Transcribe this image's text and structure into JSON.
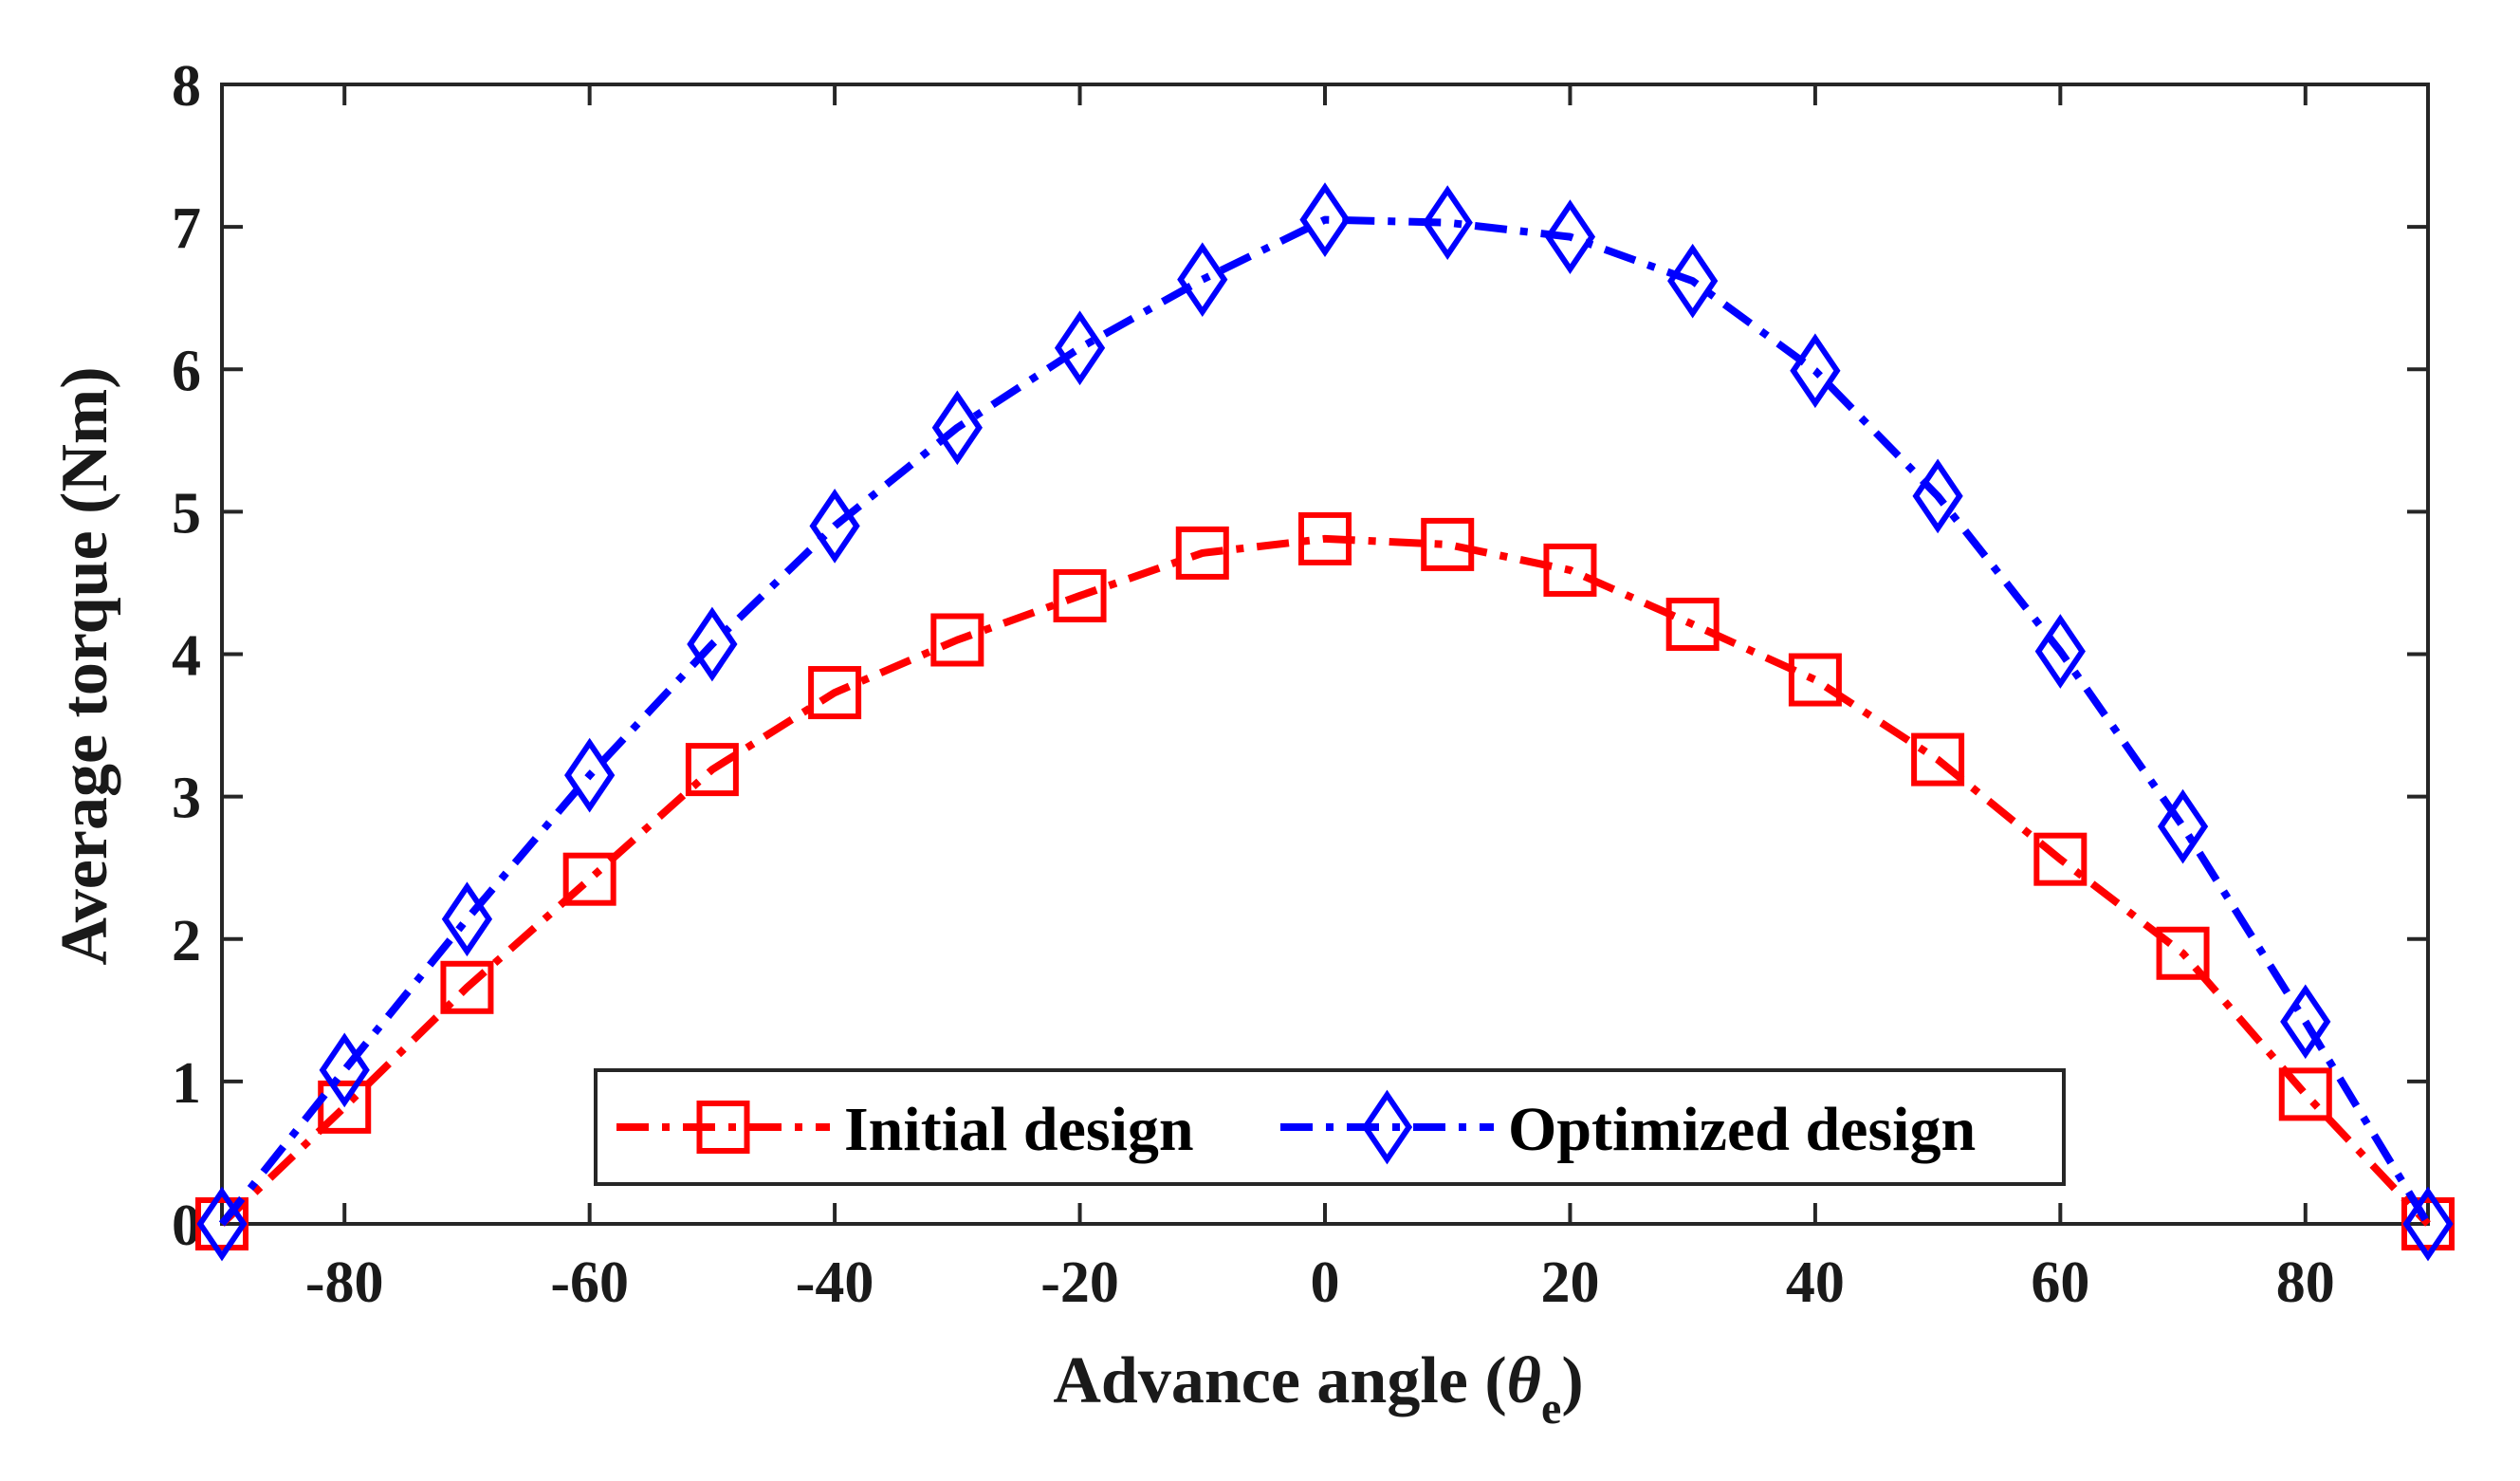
{
  "chart_data": {
    "type": "line",
    "title": "",
    "xlabel": "Advance angle (",
    "xlabel_symbol": "θ",
    "xlabel_subscript": "e",
    "xlabel_close": ")",
    "ylabel": "Average torque (Nm)",
    "xlim": [
      -90,
      90
    ],
    "ylim": [
      0,
      8
    ],
    "xticks": [
      -80,
      -60,
      -40,
      -20,
      0,
      20,
      40,
      60,
      80
    ],
    "yticks": [
      0,
      1,
      2,
      3,
      4,
      5,
      6,
      7,
      8
    ],
    "grid": false,
    "legend_position": "bottom-center",
    "x": [
      -90,
      -80,
      -70,
      -60,
      -50,
      -40,
      -30,
      -20,
      -10,
      0,
      10,
      20,
      30,
      40,
      50,
      60,
      70,
      80,
      90
    ],
    "series": [
      {
        "name": "Initial design",
        "color": "#ff0000",
        "marker": "square",
        "line_style": "dash-dot",
        "values": [
          0,
          0.82,
          1.66,
          2.42,
          3.19,
          3.73,
          4.1,
          4.41,
          4.71,
          4.81,
          4.77,
          4.59,
          4.21,
          3.82,
          3.26,
          2.56,
          1.9,
          0.91,
          0
        ]
      },
      {
        "name": "Optimized design",
        "color": "#0000ff",
        "marker": "diamond",
        "line_style": "dash-dot",
        "values": [
          0,
          1.08,
          2.14,
          3.15,
          4.07,
          4.9,
          5.59,
          6.15,
          6.63,
          7.05,
          7.03,
          6.93,
          6.62,
          5.99,
          5.11,
          4.02,
          2.79,
          1.42,
          0
        ]
      }
    ]
  }
}
